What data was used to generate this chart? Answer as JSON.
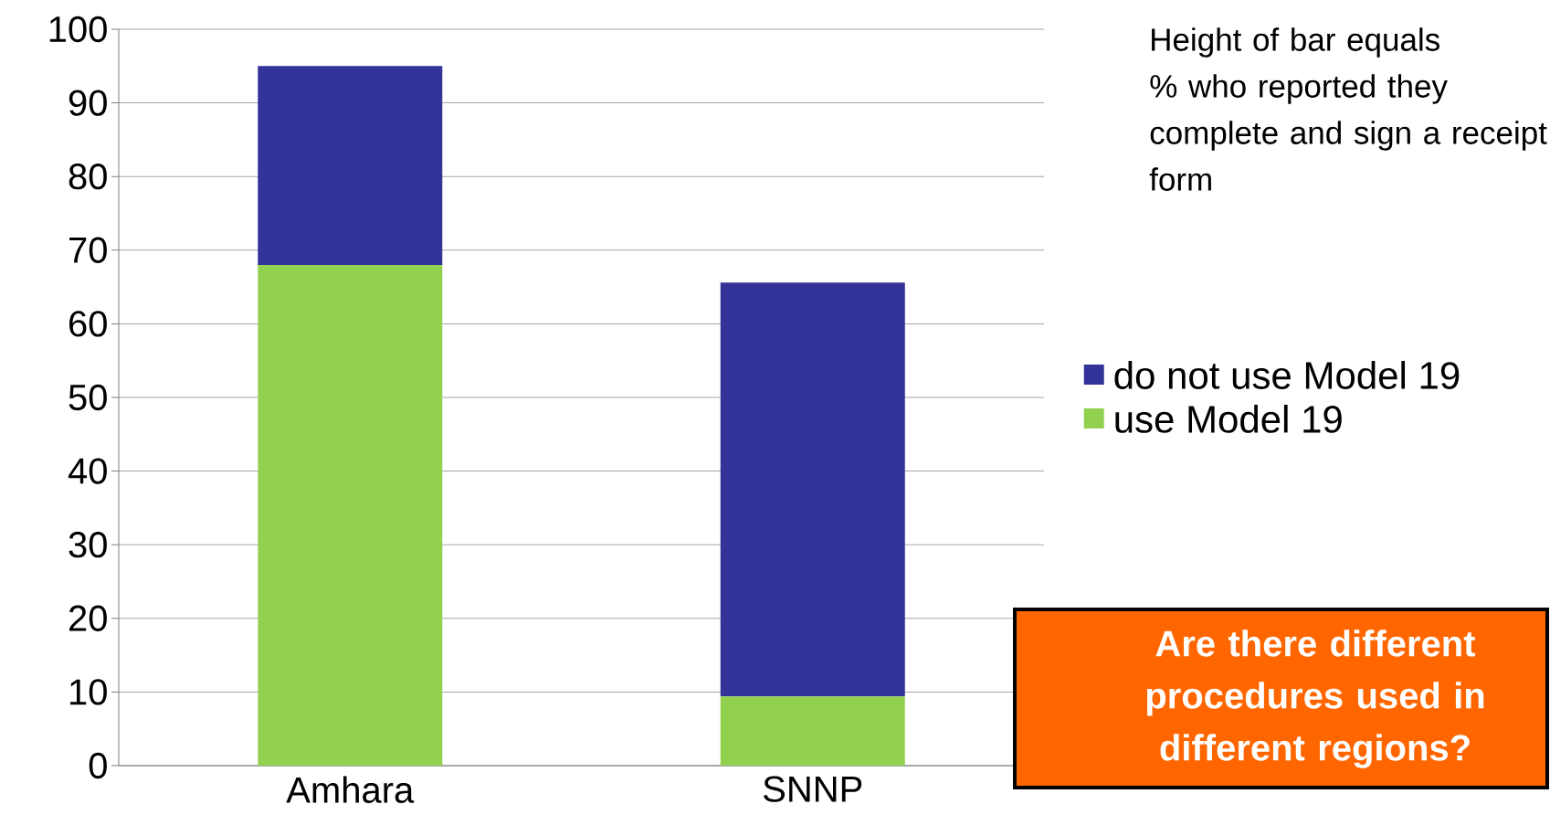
{
  "chart_data": {
    "type": "bar",
    "stacked": true,
    "categories": [
      "Amhara",
      "SNNP"
    ],
    "series": [
      {
        "name": "use Model 19",
        "color": "#92d050",
        "values": [
          68,
          9.4
        ]
      },
      {
        "name": "do not use Model 19",
        "color": "#333399",
        "values": [
          27,
          56.2
        ]
      }
    ],
    "ylim": [
      0,
      100
    ],
    "yticks": [
      0,
      10,
      20,
      30,
      40,
      50,
      60,
      70,
      80,
      90,
      100
    ],
    "grid": "y",
    "legend": "right",
    "annotations": [
      "Height of bar equals % who reported they complete and sign a receipt form",
      "Are there different procedures used in different regions?"
    ]
  }
}
